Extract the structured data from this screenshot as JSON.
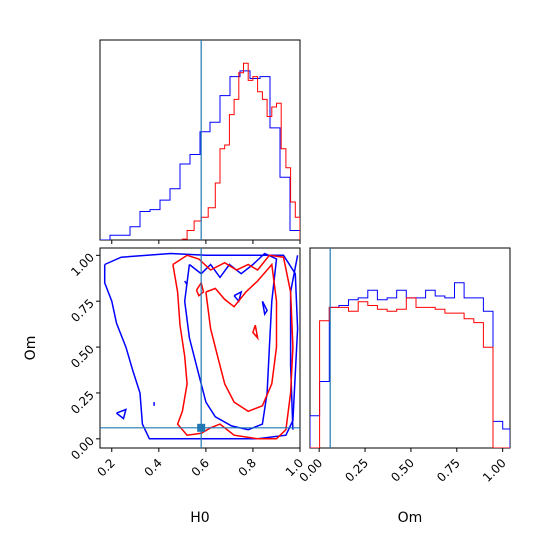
{
  "chart_data": {
    "type": "corner",
    "parameters": [
      "H0",
      "Om"
    ],
    "truth": {
      "H0": 0.58,
      "Om": 0.06
    },
    "colors": {
      "blue": "#0000ff",
      "red": "#ff0000",
      "truth": "#1f77b4"
    },
    "axes": {
      "H0": {
        "range": [
          0.15,
          1.0
        ],
        "ticks": [
          0.2,
          0.4,
          0.6,
          0.8,
          1.0
        ],
        "tick_labels": [
          "0.2",
          "0.4",
          "0.6",
          "0.8",
          "1.0"
        ],
        "label": "H0"
      },
      "Om": {
        "range": [
          -0.05,
          1.04
        ],
        "ticks": [
          0.0,
          0.25,
          0.5,
          0.75,
          1.0
        ],
        "tick_labels": [
          "0.00",
          "0.25",
          "0.50",
          "0.75",
          "1.00"
        ],
        "label": "Om"
      }
    },
    "hist_H0": {
      "bin_edges": [
        0.15,
        0.1925,
        0.235,
        0.2775,
        0.32,
        0.3625,
        0.405,
        0.4475,
        0.49,
        0.5325,
        0.575,
        0.6175,
        0.66,
        0.7025,
        0.745,
        0.7875,
        0.83,
        0.8725,
        0.915,
        0.9575,
        1.0
      ],
      "ymax": 1.0,
      "blue": [
        0.0,
        0.025,
        0.025,
        0.07,
        0.15,
        0.16,
        0.21,
        0.27,
        0.4,
        0.45,
        0.57,
        0.62,
        0.76,
        0.86,
        0.89,
        0.85,
        0.86,
        0.59,
        0.33,
        0.05
      ],
      "red_edges": [
        0.5,
        0.52,
        0.55,
        0.58,
        0.61,
        0.64,
        0.66,
        0.68,
        0.7,
        0.72,
        0.74,
        0.76,
        0.78,
        0.8,
        0.82,
        0.84,
        0.86,
        0.88,
        0.9,
        0.92,
        0.94,
        0.96,
        0.98,
        1.0
      ],
      "red": [
        0.005,
        0.05,
        0.1,
        0.12,
        0.17,
        0.3,
        0.48,
        0.5,
        0.66,
        0.74,
        0.88,
        0.93,
        0.84,
        0.86,
        0.78,
        0.74,
        0.65,
        0.7,
        0.72,
        0.48,
        0.38,
        0.2,
        0.12
      ]
    },
    "hist_Om": {
      "bin_edges": [
        -0.05,
        0.0025,
        0.055,
        0.1075,
        0.16,
        0.2125,
        0.265,
        0.3175,
        0.37,
        0.4225,
        0.475,
        0.5275,
        0.58,
        0.6325,
        0.685,
        0.7375,
        0.79,
        0.8425,
        0.895,
        0.9475,
        1.0,
        1.04
      ],
      "ymax": 1.0,
      "blue": [
        0.17,
        0.35,
        0.74,
        0.75,
        0.78,
        0.79,
        0.83,
        0.78,
        0.79,
        0.83,
        0.79,
        0.79,
        0.83,
        0.8,
        0.79,
        0.87,
        0.79,
        0.79,
        0.72,
        0.14,
        0.1
      ],
      "red": [
        0.0,
        0.67,
        0.74,
        0.74,
        0.72,
        0.77,
        0.75,
        0.73,
        0.72,
        0.73,
        0.79,
        0.74,
        0.74,
        0.73,
        0.71,
        0.71,
        0.68,
        0.66,
        0.53,
        0.0,
        0.0
      ]
    },
    "contours": {
      "blue": [
        [
          [
            0.17,
            0.95
          ],
          [
            0.24,
            0.99
          ],
          [
            0.45,
            1.01
          ],
          [
            0.6,
            1.0
          ],
          [
            0.75,
            1.0
          ],
          [
            0.93,
            1.0
          ],
          [
            0.98,
            0.9
          ],
          [
            0.99,
            0.6
          ],
          [
            0.97,
            0.1
          ],
          [
            0.94,
            0.02
          ],
          [
            0.82,
            0.0
          ],
          [
            0.7,
            0.0
          ],
          [
            0.58,
            0.0
          ],
          [
            0.46,
            0.0
          ],
          [
            0.36,
            0.0
          ],
          [
            0.33,
            0.08
          ],
          [
            0.32,
            0.25
          ],
          [
            0.29,
            0.37
          ],
          [
            0.26,
            0.5
          ],
          [
            0.22,
            0.63
          ],
          [
            0.2,
            0.75
          ],
          [
            0.17,
            0.85
          ],
          [
            0.17,
            0.95
          ]
        ],
        [
          [
            0.53,
            0.95
          ],
          [
            0.51,
            0.75
          ],
          [
            0.53,
            0.55
          ],
          [
            0.57,
            0.35
          ],
          [
            0.6,
            0.2
          ],
          [
            0.64,
            0.12
          ],
          [
            0.71,
            0.07
          ],
          [
            0.78,
            0.05
          ],
          [
            0.84,
            0.08
          ],
          [
            0.86,
            0.25
          ],
          [
            0.87,
            0.5
          ],
          [
            0.88,
            0.75
          ],
          [
            0.9,
            0.98
          ],
          [
            0.85,
            1.01
          ],
          [
            0.8,
            0.95
          ],
          [
            0.75,
            0.9
          ],
          [
            0.7,
            0.95
          ],
          [
            0.66,
            0.88
          ],
          [
            0.62,
            0.95
          ],
          [
            0.58,
            0.9
          ],
          [
            0.53,
            0.95
          ]
        ],
        [
          [
            0.97,
            0.05
          ],
          [
            0.96,
            0.4
          ],
          [
            0.96,
            0.8
          ],
          [
            0.99,
            1.0
          ]
        ],
        [
          [
            0.22,
            0.14
          ],
          [
            0.26,
            0.16
          ],
          [
            0.25,
            0.11
          ],
          [
            0.22,
            0.14
          ]
        ],
        [
          [
            0.38,
            0.18
          ],
          [
            0.38,
            0.2
          ]
        ],
        [
          [
            0.51,
            0.86
          ],
          [
            0.52,
            0.84
          ]
        ],
        [
          [
            0.72,
            0.78
          ],
          [
            0.75,
            0.8
          ],
          [
            0.74,
            0.75
          ],
          [
            0.72,
            0.78
          ]
        ],
        [
          [
            0.84,
            0.75
          ],
          [
            0.86,
            0.7
          ],
          [
            0.85,
            0.68
          ],
          [
            0.84,
            0.75
          ]
        ]
      ],
      "red": [
        [
          [
            0.46,
            0.95
          ],
          [
            0.48,
            0.8
          ],
          [
            0.49,
            0.62
          ],
          [
            0.51,
            0.45
          ],
          [
            0.52,
            0.3
          ],
          [
            0.5,
            0.15
          ],
          [
            0.48,
            0.08
          ],
          [
            0.52,
            0.02
          ],
          [
            0.58,
            0.03
          ],
          [
            0.62,
            0.06
          ],
          [
            0.66,
            0.08
          ],
          [
            0.72,
            0.02
          ],
          [
            0.82,
            0.0
          ],
          [
            0.9,
            0.0
          ],
          [
            0.94,
            0.05
          ],
          [
            0.96,
            0.25
          ],
          [
            0.97,
            0.5
          ],
          [
            0.96,
            0.8
          ],
          [
            0.93,
            0.99
          ],
          [
            0.87,
            1.0
          ],
          [
            0.82,
            0.92
          ],
          [
            0.78,
            0.95
          ],
          [
            0.73,
            0.92
          ],
          [
            0.68,
            0.96
          ],
          [
            0.62,
            0.92
          ],
          [
            0.57,
            0.98
          ],
          [
            0.52,
            1.0
          ],
          [
            0.46,
            0.95
          ]
        ],
        [
          [
            0.6,
            0.8
          ],
          [
            0.62,
            0.6
          ],
          [
            0.65,
            0.45
          ],
          [
            0.68,
            0.3
          ],
          [
            0.72,
            0.2
          ],
          [
            0.78,
            0.15
          ],
          [
            0.84,
            0.18
          ],
          [
            0.88,
            0.3
          ],
          [
            0.9,
            0.5
          ],
          [
            0.9,
            0.75
          ],
          [
            0.88,
            0.95
          ],
          [
            0.82,
            0.86
          ],
          [
            0.77,
            0.8
          ],
          [
            0.72,
            0.72
          ],
          [
            0.68,
            0.76
          ],
          [
            0.64,
            0.82
          ],
          [
            0.6,
            0.8
          ]
        ],
        [
          [
            0.56,
            0.81
          ],
          [
            0.58,
            0.85
          ],
          [
            0.59,
            0.8
          ],
          [
            0.57,
            0.78
          ],
          [
            0.56,
            0.81
          ]
        ],
        [
          [
            0.81,
            0.62
          ],
          [
            0.82,
            0.55
          ],
          [
            0.8,
            0.58
          ],
          [
            0.81,
            0.62
          ]
        ]
      ]
    }
  }
}
